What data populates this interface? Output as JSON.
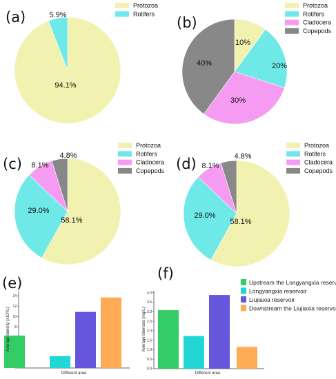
{
  "chart_data": [
    {
      "panel": "(a)",
      "type": "pie",
      "slices": [
        {
          "name": "Protozoa",
          "value": 94.1,
          "label": "94.1%",
          "color": "#f2f2b0"
        },
        {
          "name": "Rotifers",
          "value": 5.9,
          "label": "5.9%",
          "color": "#6fe8e8"
        }
      ]
    },
    {
      "panel": "(b)",
      "type": "pie",
      "slices": [
        {
          "name": "Protozoa",
          "value": 10,
          "label": "10%",
          "color": "#f2f2b0"
        },
        {
          "name": "Rotifers",
          "value": 20,
          "label": "20%",
          "color": "#6fe8e8"
        },
        {
          "name": "Cladocera",
          "value": 30,
          "label": "30%",
          "color": "#f59cf2"
        },
        {
          "name": "Copepods",
          "value": 40,
          "label": "40%",
          "color": "#888888"
        }
      ]
    },
    {
      "panel": "(c)",
      "type": "pie",
      "slices": [
        {
          "name": "Protozoa",
          "value": 58.1,
          "label": "58.1%",
          "color": "#f2f2b0"
        },
        {
          "name": "Rotifers",
          "value": 29.0,
          "label": "29.0%",
          "color": "#6fe8e8"
        },
        {
          "name": "Cladocera",
          "value": 8.1,
          "label": "8.1%",
          "color": "#f59cf2"
        },
        {
          "name": "Copepods",
          "value": 4.8,
          "label": "4.8%",
          "color": "#888888"
        }
      ]
    },
    {
      "panel": "(d)",
      "type": "pie",
      "slices": [
        {
          "name": "Protozoa",
          "value": 58.1,
          "label": "58.1%",
          "color": "#f2f2b0"
        },
        {
          "name": "Rotifers",
          "value": 29.0,
          "label": "29.0%",
          "color": "#6fe8e8"
        },
        {
          "name": "Cladocera",
          "value": 8.1,
          "label": "8.1%",
          "color": "#f59cf2"
        },
        {
          "name": "Copepods",
          "value": 4.8,
          "label": "4.8%",
          "color": "#888888"
        }
      ]
    },
    {
      "panel": "(e)",
      "type": "bar",
      "categories": [
        "Upstream the Longyangxia reservoir",
        "Longyangxia reservoir",
        "Liujiaxia reservoir",
        "Downstream the Liujiaxia reservoir"
      ],
      "values": [
        6.3,
        2.3,
        10.9,
        13.7
      ],
      "colors": [
        "#33cc66",
        "#22d6d6",
        "#6655dd",
        "#ffaa55"
      ],
      "xlabel": "Different area",
      "ylabel": "Average density (x10³/L)",
      "ylim": [
        0,
        15
      ],
      "yticks": [
        "0",
        "2",
        "4",
        "6",
        "8",
        "10",
        "12",
        "14"
      ],
      "yticks_values": [
        0,
        2,
        4,
        6,
        8,
        10,
        12,
        14
      ]
    },
    {
      "panel": "(f)",
      "type": "bar",
      "categories": [
        "Upstream the Longyangxia reservoir",
        "Longyangxia reservoir",
        "Liujiaxia reservoir",
        "Downstream the Liujiaxia reservoir"
      ],
      "values": [
        3.08,
        1.72,
        3.88,
        1.15
      ],
      "colors": [
        "#33cc66",
        "#22d6d6",
        "#6655dd",
        "#ffaa55"
      ],
      "xlabel": "Different area",
      "ylabel": "Average biomass (mg/L)",
      "ylim": [
        0,
        4.1
      ],
      "yticks": [
        "0.0",
        "0.5",
        "1.0",
        "1.5",
        "2.0",
        "2.5",
        "3.0",
        "3.5",
        "4.0"
      ],
      "yticks_values": [
        0,
        0.5,
        1.0,
        1.5,
        2.0,
        2.5,
        3.0,
        3.5,
        4.0
      ]
    }
  ],
  "bar_legend": [
    {
      "label": "Upstream the Longyangxia reservoir",
      "color": "#33cc66"
    },
    {
      "label": "Longyangxia reservoir",
      "color": "#22d6d6"
    },
    {
      "label": "Liujiaxia reservoir",
      "color": "#6655dd"
    },
    {
      "label": "Downstream the Liujiaxia reservoir",
      "color": "#ffaa55"
    }
  ]
}
